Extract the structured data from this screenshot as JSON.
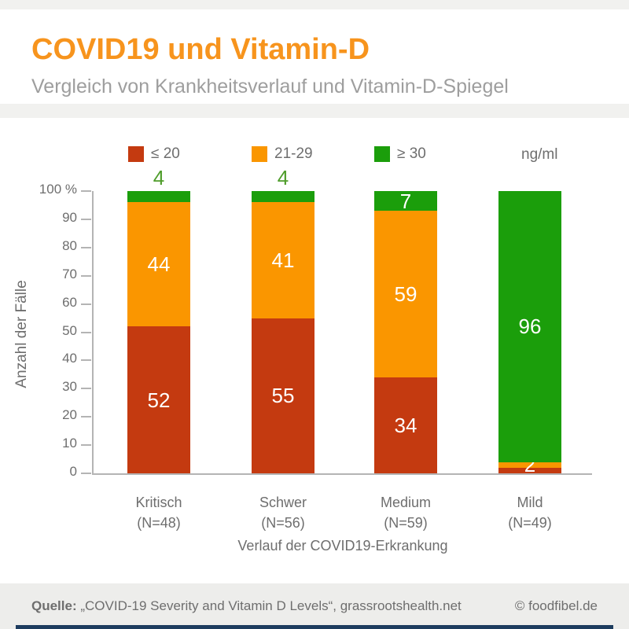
{
  "colors": {
    "title_orange": "#f7941d",
    "red": "#c43a10",
    "orange": "#fa9600",
    "green": "#1b9e0b",
    "green_label": "#4f9d2b",
    "navy_accent": "#1d3c5e",
    "page_bg": "#f1f1ef",
    "card_bg": "#ffffff",
    "footer_bg": "#ededeb",
    "text_gray": "#6e6e6e",
    "subtitle_gray": "#9e9e9e"
  },
  "header": {
    "title": "COVID19 und Vitamin-D",
    "subtitle": "Vergleich von Krankheitsverlauf und Vitamin-D-Spiegel"
  },
  "legend": {
    "items": [
      {
        "label": "≤ 20",
        "color": "#c43a10"
      },
      {
        "label": "21-29",
        "color": "#fa9600"
      },
      {
        "label": "≥ 30",
        "color": "#1b9e0b"
      }
    ],
    "unit": "ng/ml"
  },
  "chart_data": {
    "type": "bar",
    "subtype": "stacked-percent",
    "categories": [
      "Kritisch",
      "Schwer",
      "Medium",
      "Mild"
    ],
    "category_sublabels": [
      "(N=48)",
      "(N=56)",
      "(N=59)",
      "(N=49)"
    ],
    "series": [
      {
        "name": "≤ 20",
        "color": "#c43a10",
        "values": [
          52,
          55,
          34,
          2
        ],
        "labels": [
          "52",
          "55",
          "34",
          ""
        ]
      },
      {
        "name": "21-29",
        "color": "#fa9600",
        "values": [
          44,
          41,
          59,
          2
        ],
        "labels": [
          "44",
          "41",
          "59",
          "2"
        ]
      },
      {
        "name": "≥ 30",
        "color": "#1b9e0b",
        "values": [
          4,
          4,
          7,
          96
        ],
        "labels": [
          "4",
          "4",
          "7",
          "96"
        ],
        "label_outside": [
          true,
          true,
          false,
          false
        ],
        "outside_label_color": "#4f9d2b"
      }
    ],
    "ylabel": "Anzahl der Fälle",
    "xlabel": "Verlauf der COVID19-Erkrankung",
    "yticks": [
      "100 %",
      "90",
      "80",
      "70",
      "60",
      "50",
      "40",
      "30",
      "20",
      "10",
      "0"
    ],
    "ytick_values": [
      100,
      90,
      80,
      70,
      60,
      50,
      40,
      30,
      20,
      10,
      0
    ],
    "ylim": [
      0,
      100
    ],
    "grid": false,
    "legend_position": "top"
  },
  "footer": {
    "source_label": "Quelle:",
    "source_text": "„COVID-19 Severity and Vitamin D Levels“, grassrootshealth.net",
    "copyright": "© foodfibel.de"
  }
}
